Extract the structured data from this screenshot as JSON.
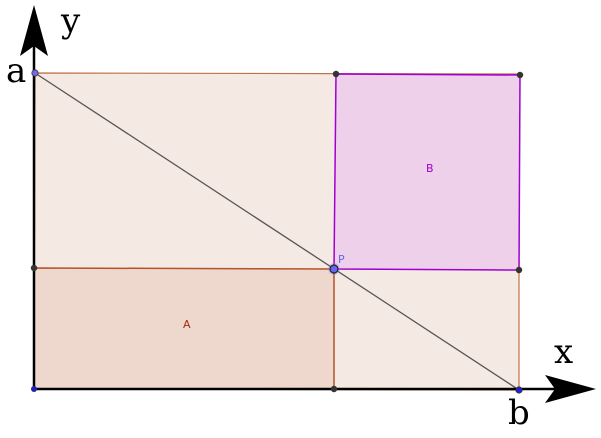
{
  "axes": {
    "x_label": "x",
    "y_label": "y"
  },
  "points": {
    "a": "a",
    "b": "b",
    "P": "P"
  },
  "regions": {
    "A": "A",
    "B": "B"
  },
  "colors": {
    "outer_fill": "#f5e9e3",
    "outer_stroke": "#c0714a",
    "rect_a_fill": "#eed8cd",
    "rect_a_stroke": "#b5522a",
    "rect_b_fill": "#eed0ea",
    "rect_b_stroke": "#a000d0",
    "label_a": "#a52a0a",
    "label_b": "#a000d0",
    "point_p": "#6666ee",
    "diagonal": "#555555"
  }
}
